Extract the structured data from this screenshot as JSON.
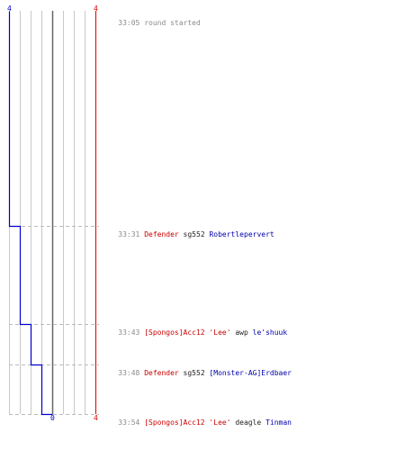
{
  "colors": {
    "blue": "#0000cc",
    "red": "#dd0000",
    "grid": "#c8c8c8",
    "center_line": "#666666",
    "dash": "#bbbbbb",
    "time_gray": "#8a8a8a"
  },
  "header": {
    "blue_count": "4",
    "red_count": "4"
  },
  "footer": {
    "blue_final": "0",
    "red_final": "4"
  },
  "events": [
    {
      "time": "33:05",
      "message": "round started",
      "killer": "",
      "weapon": "",
      "victim": "",
      "blue_alive": 4
    },
    {
      "time": "33:31",
      "message": "",
      "killer": "Defender",
      "weapon": "sg552",
      "victim": "Robertlepervert",
      "blue_alive": 3
    },
    {
      "time": "33:43",
      "message": "",
      "killer": "[Spongos]Acc12 'Lee'",
      "weapon": "awp",
      "victim": "le'shuuk",
      "blue_alive": 2
    },
    {
      "time": "33:48",
      "message": "",
      "killer": "Defender",
      "weapon": "sg552",
      "victim": "[Monster-AG]Erdbaer",
      "blue_alive": 1
    },
    {
      "time": "33:54",
      "message": "",
      "killer": "[Spongos]Acc12 'Lee'",
      "weapon": "deagle",
      "victim": "Tinman",
      "blue_alive": 0
    }
  ]
}
